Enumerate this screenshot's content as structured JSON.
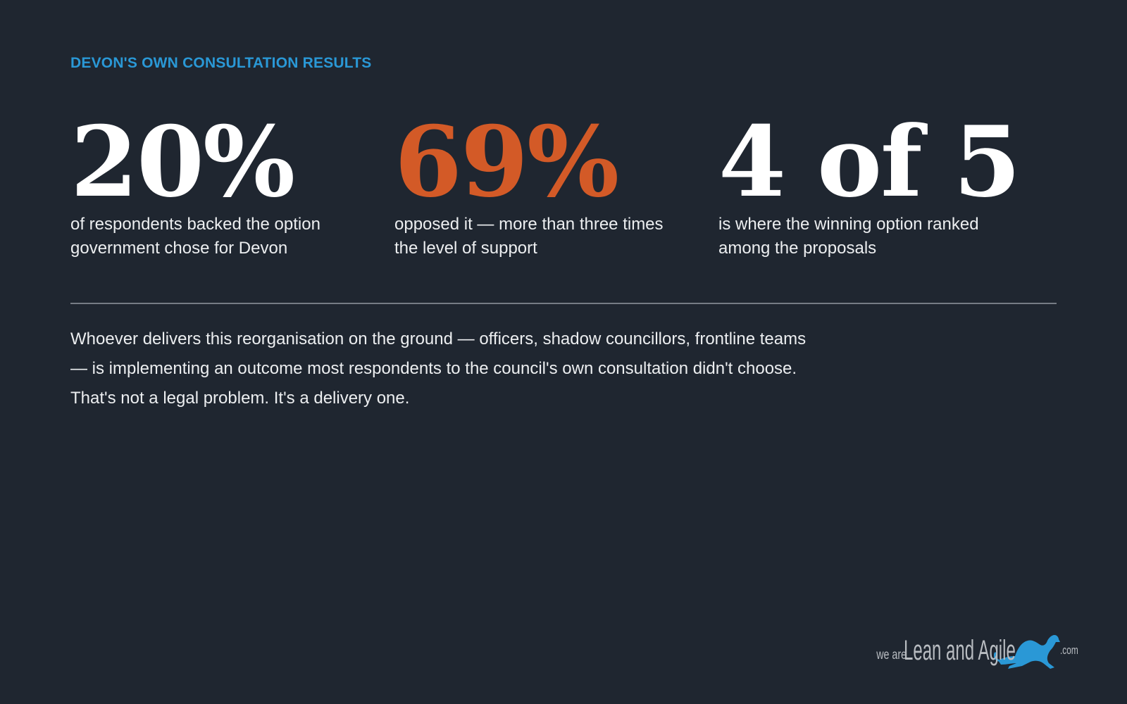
{
  "eyebrow": "DEVON'S OWN CONSULTATION RESULTS",
  "stats": [
    {
      "figure": "20%",
      "caption": "of respondents backed the option government chose for Devon"
    },
    {
      "figure": "69%",
      "caption": "opposed it — more than three times the level of support"
    },
    {
      "figure": "4 of 5",
      "caption": "is where the winning option ranked among the proposals"
    }
  ],
  "body": "Whoever delivers this reorganisation on the ground — officers, shadow councillors, frontline teams — is implementing an outcome most respondents to the council's own consultation didn't choose. That's not a legal problem. It's a delivery one.",
  "logo": {
    "prefix": "we are",
    "name": "Lean and Agile",
    "suffix": ".com",
    "icon": "greyhound-icon"
  },
  "colors": {
    "background": "#1f2630",
    "eyebrow": "#2a98d6",
    "accent": "#d35a27",
    "logo_icon": "#2a98d6"
  }
}
